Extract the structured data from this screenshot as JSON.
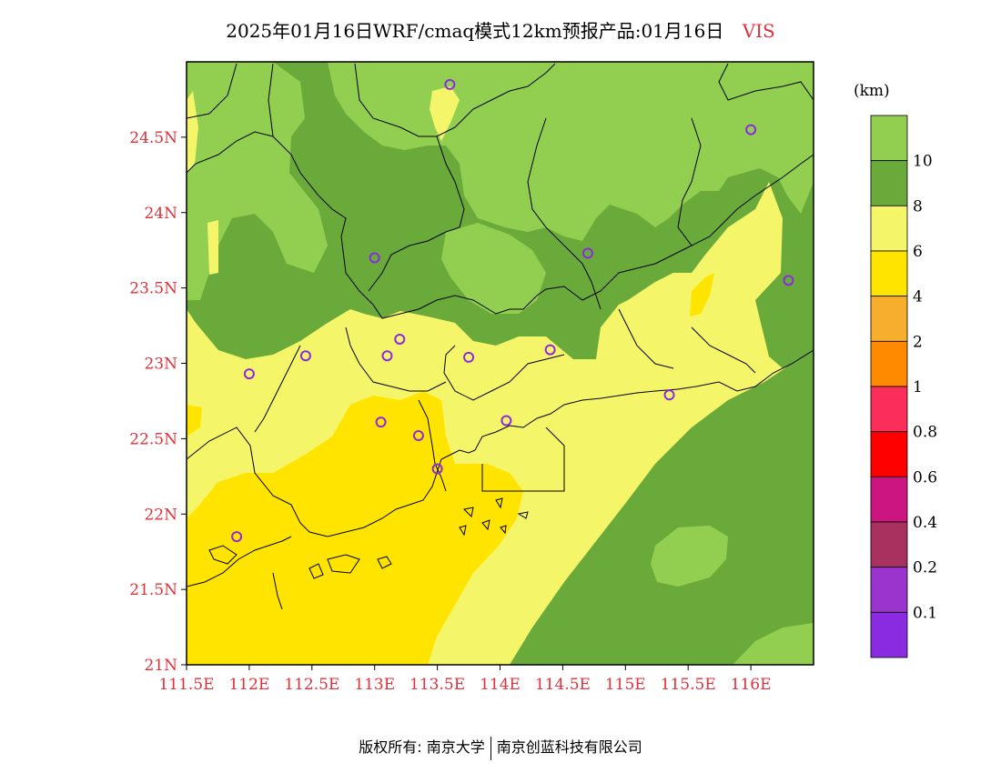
{
  "title": {
    "text": "2025年01月16日WRF/cmaq模式12km预报产品:01月16日",
    "variable": "VIS"
  },
  "map": {
    "lon_range": [
      111.5,
      116.5
    ],
    "lat_range": [
      21.0,
      25.0
    ],
    "x_ticks": [
      {
        "value": 111.5,
        "label": "111.5E"
      },
      {
        "value": 112.0,
        "label": "112E"
      },
      {
        "value": 112.5,
        "label": "112.5E"
      },
      {
        "value": 113.0,
        "label": "113E"
      },
      {
        "value": 113.5,
        "label": "113.5E"
      },
      {
        "value": 114.0,
        "label": "114E"
      },
      {
        "value": 114.5,
        "label": "114.5E"
      },
      {
        "value": 115.0,
        "label": "115E"
      },
      {
        "value": 115.5,
        "label": "115.5E"
      },
      {
        "value": 116.0,
        "label": "116E"
      }
    ],
    "y_ticks": [
      {
        "value": 21.0,
        "label": "21N"
      },
      {
        "value": 21.5,
        "label": "21.5N"
      },
      {
        "value": 22.0,
        "label": "22N"
      },
      {
        "value": 22.5,
        "label": "22.5N"
      },
      {
        "value": 23.0,
        "label": "23N"
      },
      {
        "value": 23.5,
        "label": "23.5N"
      },
      {
        "value": 24.0,
        "label": "24N"
      },
      {
        "value": 24.5,
        "label": "24.5N"
      }
    ],
    "stations": [
      {
        "lon": 113.6,
        "lat": 24.85
      },
      {
        "lon": 116.0,
        "lat": 24.55
      },
      {
        "lon": 113.0,
        "lat": 23.7
      },
      {
        "lon": 114.7,
        "lat": 23.73
      },
      {
        "lon": 116.3,
        "lat": 23.55
      },
      {
        "lon": 113.2,
        "lat": 23.16
      },
      {
        "lon": 112.45,
        "lat": 23.05
      },
      {
        "lon": 113.1,
        "lat": 23.05
      },
      {
        "lon": 113.75,
        "lat": 23.04
      },
      {
        "lon": 114.4,
        "lat": 23.09
      },
      {
        "lon": 112.0,
        "lat": 22.93
      },
      {
        "lon": 115.35,
        "lat": 22.79
      },
      {
        "lon": 113.05,
        "lat": 22.61
      },
      {
        "lon": 114.05,
        "lat": 22.62
      },
      {
        "lon": 113.35,
        "lat": 22.52
      },
      {
        "lon": 113.5,
        "lat": 22.3
      },
      {
        "lon": 111.9,
        "lat": 21.85
      }
    ]
  },
  "legend": {
    "units": "(km)",
    "labels": [
      "10",
      "8",
      "6",
      "4",
      "2",
      "1",
      "0.8",
      "0.6",
      "0.4",
      "0.2",
      "0.1"
    ],
    "colors": [
      "#92cf50",
      "#6aaa3a",
      "#f5f56a",
      "#ffe400",
      "#f7ae2c",
      "#ff8a00",
      "#fb2d5a",
      "#ff0000",
      "#cc1581",
      "#a9315f",
      "#9a34cc",
      "#8a2be2"
    ],
    "station_color": "#8a2be2"
  },
  "footer": {
    "left": "版权所有: 南京大学",
    "right": "南京创蓝科技有限公司"
  }
}
